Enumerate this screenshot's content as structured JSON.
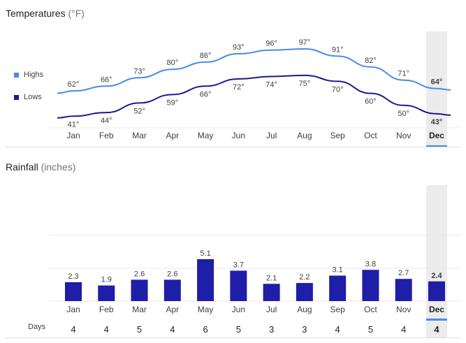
{
  "temperatures": {
    "title": "Temperatures",
    "unit": "(°F)",
    "legend_highs": "Highs",
    "legend_lows": "Lows"
  },
  "rainfall": {
    "title": "Rainfall",
    "unit": "(inches)"
  },
  "days": {
    "label": "Days"
  },
  "colors": {
    "highs": "#4a8ae8",
    "lows": "#1a1a8f",
    "bars": "#1e1ea8",
    "highlight_bar": "#4a8ae8",
    "selected_column": "#ececec"
  },
  "selected_month": "Dec",
  "chart_data": [
    {
      "type": "line",
      "title": "Temperatures",
      "unit": "°F",
      "categories": [
        "Jan",
        "Feb",
        "Mar",
        "Apr",
        "May",
        "Jun",
        "Jul",
        "Aug",
        "Sep",
        "Oct",
        "Nov",
        "Dec"
      ],
      "series": [
        {
          "name": "Highs",
          "values": [
            62,
            66,
            73,
            80,
            86,
            93,
            96,
            97,
            91,
            82,
            71,
            64
          ],
          "labels": [
            "62°",
            "66°",
            "73°",
            "80°",
            "86°",
            "93°",
            "96°",
            "97°",
            "91°",
            "82°",
            "71°",
            "64°"
          ]
        },
        {
          "name": "Lows",
          "values": [
            41,
            44,
            52,
            59,
            66,
            72,
            74,
            75,
            70,
            60,
            50,
            43
          ],
          "labels": [
            "41°",
            "44°",
            "52°",
            "59°",
            "66°",
            "72°",
            "74°",
            "75°",
            "70°",
            "60°",
            "50°",
            "43°"
          ]
        }
      ]
    },
    {
      "type": "bar",
      "title": "Rainfall",
      "unit": "inches",
      "categories": [
        "Jan",
        "Feb",
        "Mar",
        "Apr",
        "May",
        "Jun",
        "Jul",
        "Aug",
        "Sep",
        "Oct",
        "Nov",
        "Dec"
      ],
      "values": [
        2.3,
        1.9,
        2.6,
        2.6,
        5.1,
        3.7,
        2.1,
        2.2,
        3.1,
        3.8,
        2.7,
        2.4
      ],
      "labels": [
        "2.3",
        "1.9",
        "2.6",
        "2.6",
        "5.1",
        "3.7",
        "2.1",
        "2.2",
        "3.1",
        "3.8",
        "2.7",
        "2.4"
      ],
      "ylim": [
        0,
        10
      ],
      "grid": true
    },
    {
      "type": "table",
      "title": "Days",
      "categories": [
        "Jan",
        "Feb",
        "Mar",
        "Apr",
        "May",
        "Jun",
        "Jul",
        "Aug",
        "Sep",
        "Oct",
        "Nov",
        "Dec"
      ],
      "values": [
        4,
        4,
        5,
        4,
        6,
        5,
        3,
        3,
        4,
        5,
        4,
        4
      ]
    }
  ]
}
